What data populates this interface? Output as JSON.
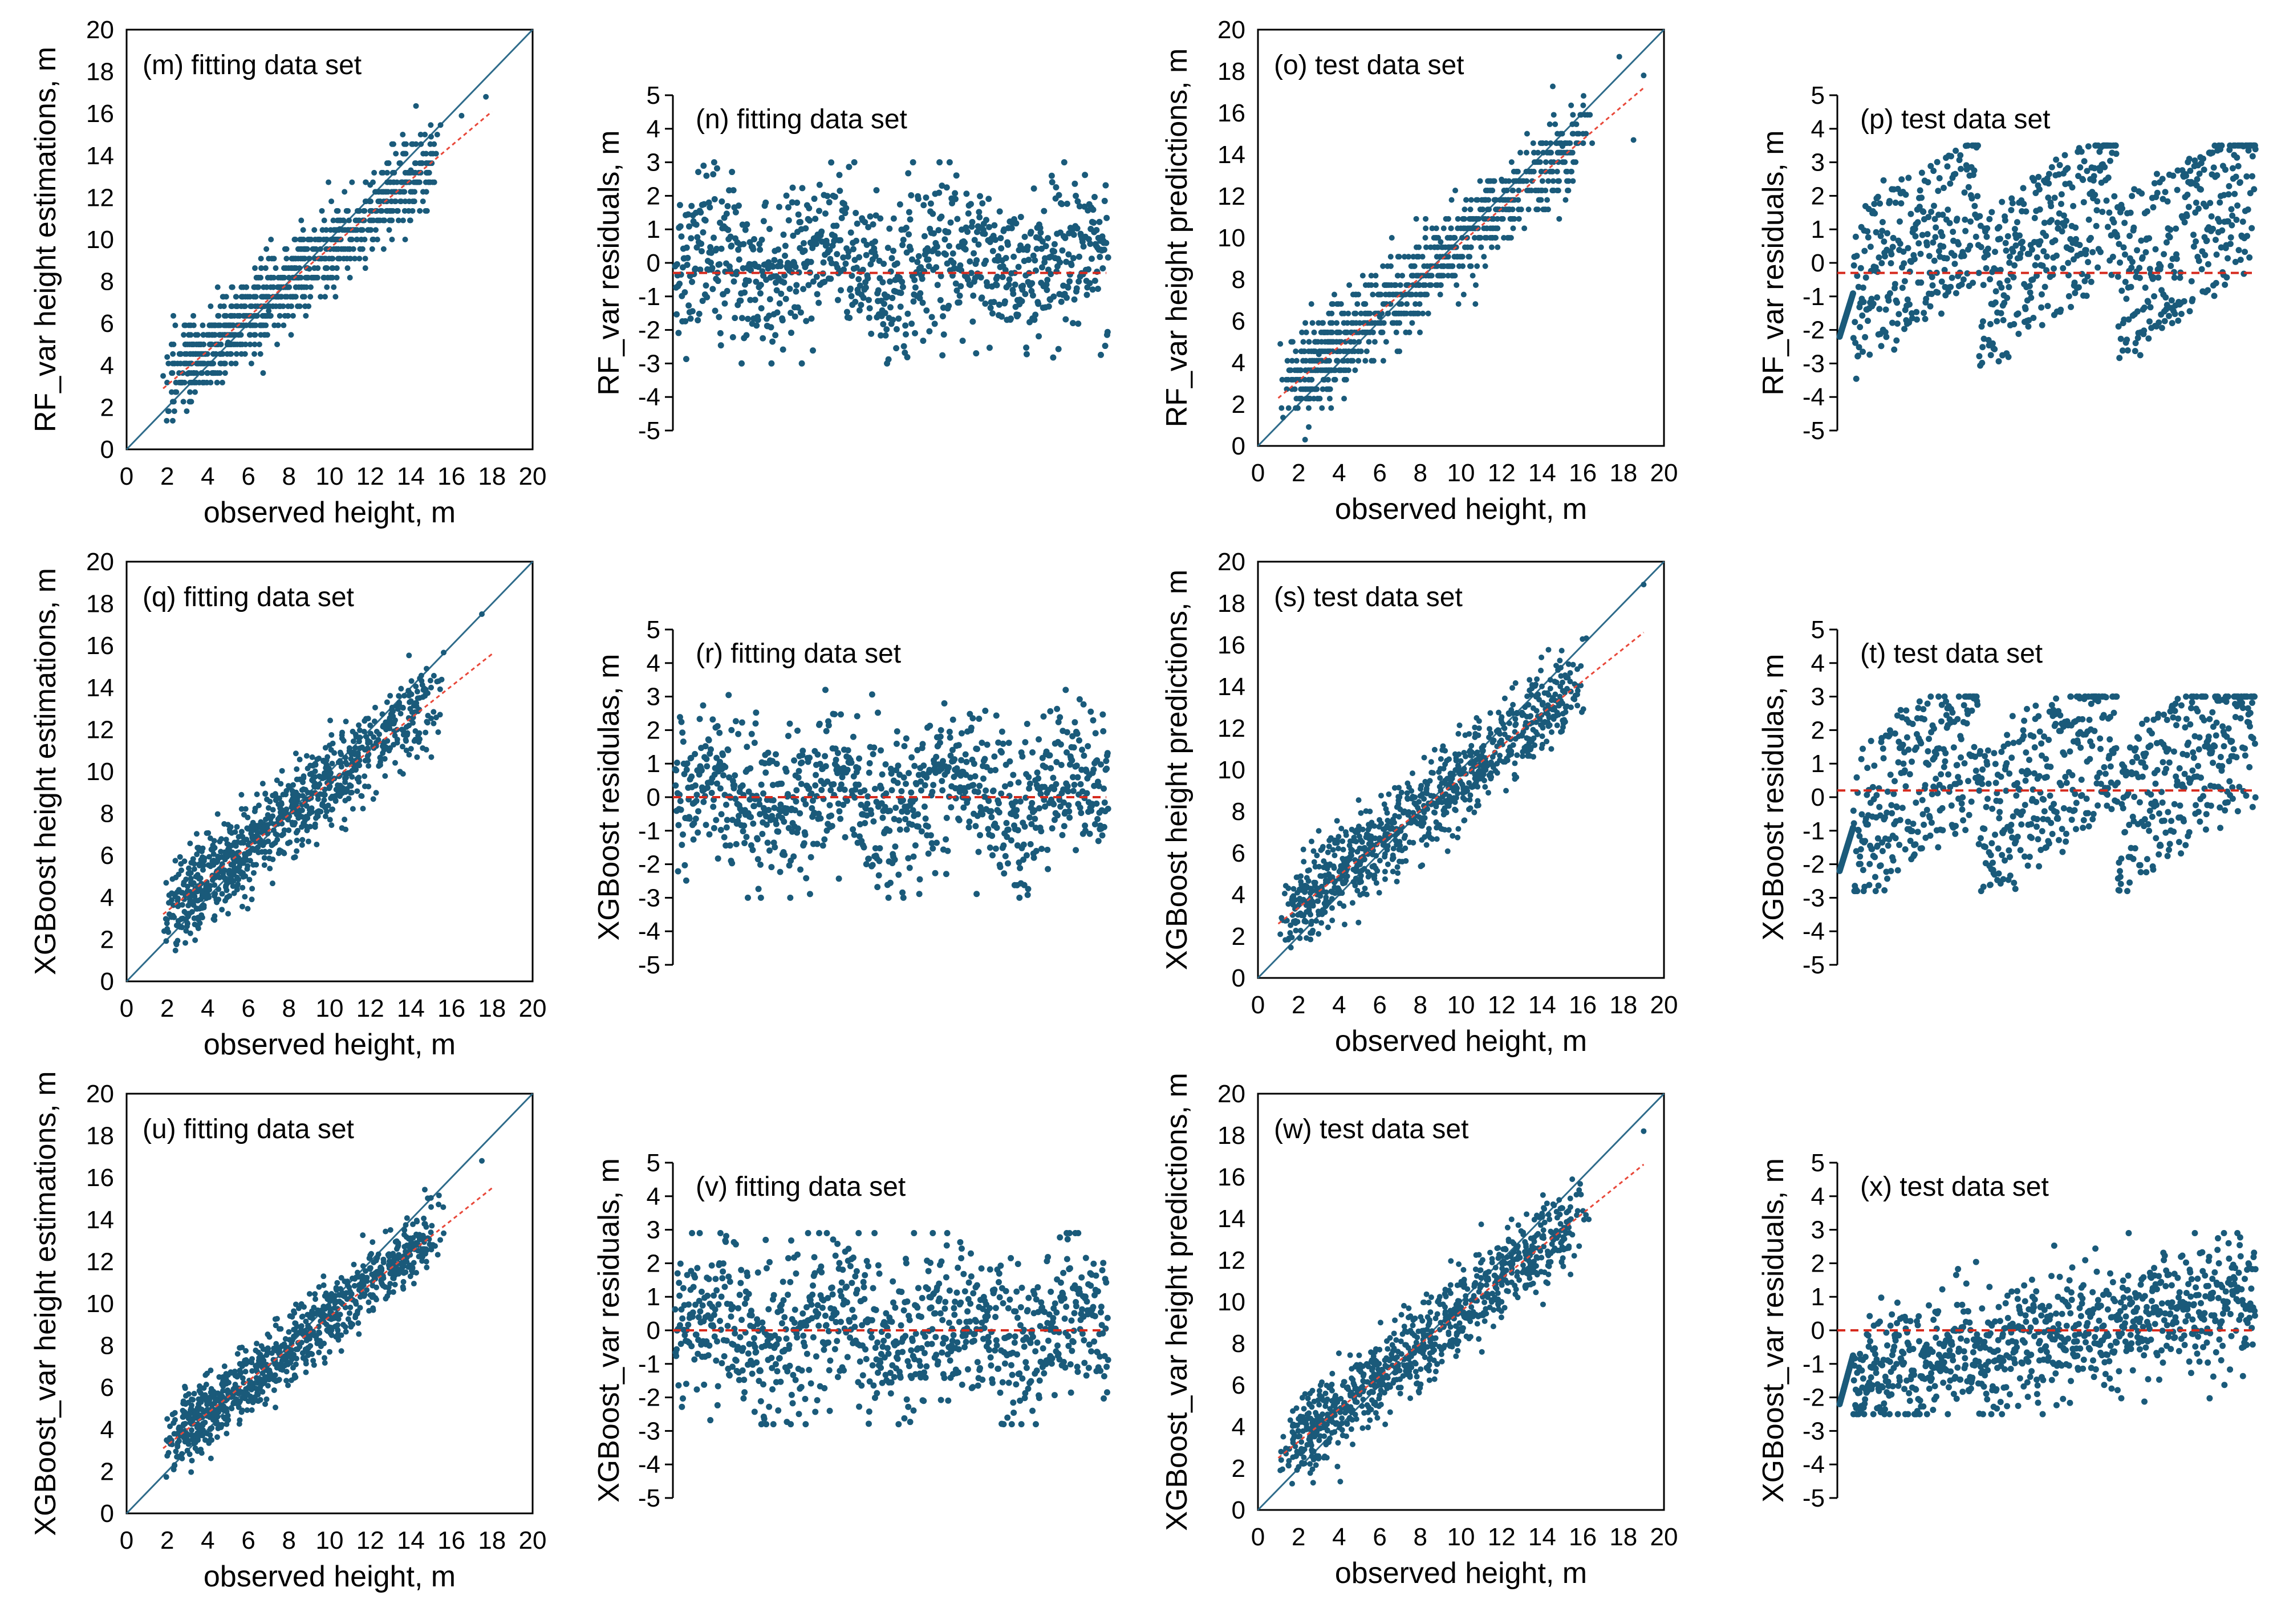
{
  "chart_data": [
    {
      "id": "m",
      "type": "scatter",
      "kind": "fit",
      "title": "(m) fitting data set",
      "xlabel": "observed height, m",
      "ylabel": "RF_var height estimations, m",
      "xlim": [
        0,
        20
      ],
      "ylim": [
        0,
        20
      ],
      "xticks": [
        "0",
        "2",
        "4",
        "6",
        "8",
        "10",
        "12",
        "14",
        "16",
        "18",
        "20"
      ],
      "yticks": [
        "0",
        "2",
        "4",
        "6",
        "8",
        "10",
        "12",
        "14",
        "16",
        "18",
        "20"
      ],
      "series": [
        {
          "name": "1:1 line",
          "points": [
            [
              0,
              0
            ],
            [
              20,
              20
            ]
          ]
        },
        {
          "name": "trend line",
          "points": [
            [
              1.8,
              2.9
            ],
            [
              18,
              16.1
            ]
          ]
        },
        {
          "name": "observations",
          "n": 900,
          "x_range": [
            1.8,
            17.8
          ],
          "y_spread": 1.3,
          "sample_points": [
            [
              1.8,
              3.5
            ],
            [
              2,
              4.4
            ],
            [
              3,
              3.6
            ],
            [
              5,
              5.1
            ],
            [
              7,
              6.6
            ],
            [
              9,
              8.6
            ],
            [
              10.5,
              10.5
            ],
            [
              12,
              12.6
            ],
            [
              14,
              13.3
            ],
            [
              15,
              14.9
            ],
            [
              16.5,
              15.9
            ],
            [
              17.7,
              16.8
            ]
          ]
        }
      ]
    },
    {
      "id": "n",
      "type": "scatter",
      "kind": "resid",
      "title": "(n) fitting data set",
      "xlabel": "",
      "ylabel": "RF_var residuals, m",
      "xlim": [
        0,
        1000
      ],
      "ylim": [
        -5,
        5
      ],
      "yticks": [
        "5",
        "4",
        "3",
        "2",
        "1",
        "0",
        "-1",
        "-2",
        "-3",
        "-4",
        "-5"
      ],
      "series": [
        {
          "name": "mean residual line",
          "y": -0.3
        },
        {
          "name": "residuals",
          "n": 900,
          "y_range": [
            -3.0,
            3.0
          ],
          "pattern": "random"
        }
      ]
    },
    {
      "id": "o",
      "type": "scatter",
      "kind": "fit",
      "title": "(o) test data set",
      "xlabel": "observed height, m",
      "ylabel": "RF_var height predictions, m",
      "xlim": [
        0,
        20
      ],
      "ylim": [
        0,
        20
      ],
      "xticks": [
        "0",
        "2",
        "4",
        "6",
        "8",
        "10",
        "12",
        "14",
        "16",
        "18",
        "20"
      ],
      "yticks": [
        "0",
        "2",
        "4",
        "6",
        "8",
        "10",
        "12",
        "14",
        "16",
        "18",
        "20"
      ],
      "series": [
        {
          "name": "1:1 line",
          "points": [
            [
              0,
              0
            ],
            [
              20,
              20
            ]
          ]
        },
        {
          "name": "trend line",
          "points": [
            [
              1,
              2.3
            ],
            [
              19,
              17.2
            ]
          ]
        },
        {
          "name": "observations",
          "n": 900,
          "x_range": [
            1.1,
            19
          ],
          "y_spread": 1.4,
          "sample_points": [
            [
              1.1,
              4.9
            ],
            [
              3,
              4.4
            ],
            [
              6,
              6.2
            ],
            [
              9,
              9.8
            ],
            [
              12,
              12.8
            ],
            [
              15,
              14.4
            ],
            [
              17.8,
              18.7
            ],
            [
              18.5,
              14.7
            ],
            [
              19,
              17.8
            ]
          ]
        }
      ]
    },
    {
      "id": "p",
      "type": "scatter",
      "kind": "resid",
      "title": "(p) test data set",
      "xlabel": "",
      "ylabel": "RF_var residuals, m",
      "xlim": [
        0,
        1000
      ],
      "ylim": [
        -5,
        5
      ],
      "yticks": [
        "5",
        "4",
        "3",
        "2",
        "1",
        "0",
        "-1",
        "-2",
        "-3",
        "-4",
        "-5"
      ],
      "series": [
        {
          "name": "mean residual line",
          "y": -0.3
        },
        {
          "name": "residuals",
          "n": 900,
          "y_range": [
            -3.7,
            3.5
          ],
          "pattern": "sawtooth"
        }
      ]
    },
    {
      "id": "q",
      "type": "scatter",
      "kind": "fit",
      "title": "(q) fitting data set",
      "xlabel": "observed height, m",
      "ylabel": "XGBoost height estimations, m",
      "xlim": [
        0,
        20
      ],
      "ylim": [
        0,
        20
      ],
      "xticks": [
        "0",
        "2",
        "4",
        "6",
        "8",
        "10",
        "12",
        "14",
        "16",
        "18",
        "20"
      ],
      "yticks": [
        "0",
        "2",
        "4",
        "6",
        "8",
        "10",
        "12",
        "14",
        "16",
        "18",
        "20"
      ],
      "series": [
        {
          "name": "1:1 line",
          "points": [
            [
              0,
              0
            ],
            [
              20,
              20
            ]
          ]
        },
        {
          "name": "trend line",
          "points": [
            [
              1.8,
              3.2
            ],
            [
              18,
              15.6
            ]
          ]
        },
        {
          "name": "observations",
          "n": 900,
          "x_range": [
            1.8,
            17.8
          ],
          "y_spread": 1.4,
          "sample_points": [
            [
              2,
              2.5
            ],
            [
              3,
              4.3
            ],
            [
              6,
              6.5
            ],
            [
              9,
              8.7
            ],
            [
              12,
              12.2
            ],
            [
              15,
              14
            ],
            [
              17.5,
              17.5
            ]
          ]
        }
      ]
    },
    {
      "id": "r",
      "type": "scatter",
      "kind": "resid",
      "title": "(r) fitting data set",
      "xlabel": "",
      "ylabel": "XGBoost residulas, m",
      "xlim": [
        0,
        1000
      ],
      "ylim": [
        -5,
        5
      ],
      "yticks": [
        "5",
        "4",
        "3",
        "2",
        "1",
        "0",
        "-1",
        "-2",
        "-3",
        "-4",
        "-5"
      ],
      "series": [
        {
          "name": "mean residual line",
          "y": 0
        },
        {
          "name": "residuals",
          "n": 900,
          "y_range": [
            -3.0,
            3.2
          ],
          "pattern": "random"
        }
      ]
    },
    {
      "id": "s",
      "type": "scatter",
      "kind": "fit",
      "title": "(s) test data set",
      "xlabel": "observed height, m",
      "ylabel": "XGBoost  height predictions, m",
      "xlim": [
        0,
        20
      ],
      "ylim": [
        0,
        20
      ],
      "xticks": [
        "0",
        "2",
        "4",
        "6",
        "8",
        "10",
        "12",
        "14",
        "16",
        "18",
        "20"
      ],
      "yticks": [
        "0",
        "2",
        "4",
        "6",
        "8",
        "10",
        "12",
        "14",
        "16",
        "18",
        "20"
      ],
      "series": [
        {
          "name": "1:1 line",
          "points": [
            [
              0,
              0
            ],
            [
              20,
              20
            ]
          ]
        },
        {
          "name": "trend line",
          "points": [
            [
              1,
              2.6
            ],
            [
              19,
              16.6
            ]
          ]
        },
        {
          "name": "observations",
          "n": 900,
          "x_range": [
            1.1,
            19
          ],
          "y_spread": 1.4,
          "sample_points": [
            [
              1.1,
              2.1
            ],
            [
              3,
              4.3
            ],
            [
              6,
              6.6
            ],
            [
              9,
              9
            ],
            [
              12,
              12.3
            ],
            [
              15,
              14.2
            ],
            [
              19,
              18.9
            ]
          ]
        }
      ]
    },
    {
      "id": "t",
      "type": "scatter",
      "kind": "resid",
      "title": "(t) test data set",
      "xlabel": "",
      "ylabel": "XGBoost residulas, m",
      "xlim": [
        0,
        1000
      ],
      "ylim": [
        -5,
        5
      ],
      "yticks": [
        "5",
        "4",
        "3",
        "2",
        "1",
        "0",
        "-1",
        "-2",
        "-3",
        "-4",
        "-5"
      ],
      "series": [
        {
          "name": "mean residual line",
          "y": 0.2
        },
        {
          "name": "residuals",
          "n": 900,
          "y_range": [
            -2.8,
            3.0
          ],
          "pattern": "sawtooth"
        }
      ]
    },
    {
      "id": "u",
      "type": "scatter",
      "kind": "fit",
      "title": "(u) fitting data set",
      "xlabel": "observed height, m",
      "ylabel": "XGBoost_var height estimations, m",
      "xlim": [
        0,
        20
      ],
      "ylim": [
        0,
        20
      ],
      "xticks": [
        "0",
        "2",
        "4",
        "6",
        "8",
        "10",
        "12",
        "14",
        "16",
        "18",
        "20"
      ],
      "yticks": [
        "0",
        "2",
        "4",
        "6",
        "8",
        "10",
        "12",
        "14",
        "16",
        "18",
        "20"
      ],
      "series": [
        {
          "name": "1:1 line",
          "points": [
            [
              0,
              0
            ],
            [
              20,
              20
            ]
          ]
        },
        {
          "name": "trend line",
          "points": [
            [
              1.8,
              3.1
            ],
            [
              18,
              15.5
            ]
          ]
        },
        {
          "name": "observations",
          "n": 900,
          "x_range": [
            1.8,
            17.8
          ],
          "y_spread": 1.1,
          "sample_points": [
            [
              2,
              4.5
            ],
            [
              3,
              3.5
            ],
            [
              6,
              6
            ],
            [
              9,
              8.5
            ],
            [
              12,
              12.3
            ],
            [
              15,
              14.6
            ],
            [
              17.5,
              16.8
            ]
          ]
        }
      ]
    },
    {
      "id": "v",
      "type": "scatter",
      "kind": "resid",
      "title": "(v) fitting data set",
      "xlabel": "",
      "ylabel": "XGBoost_var residuals, m",
      "xlim": [
        0,
        1000
      ],
      "ylim": [
        -5,
        5
      ],
      "yticks": [
        "5",
        "4",
        "3",
        "2",
        "1",
        "0",
        "-1",
        "-2",
        "-3",
        "-4",
        "-5"
      ],
      "series": [
        {
          "name": "mean residual line",
          "y": 0
        },
        {
          "name": "residuals",
          "n": 900,
          "y_range": [
            -2.8,
            2.9
          ],
          "pattern": "random"
        }
      ]
    },
    {
      "id": "w",
      "type": "scatter",
      "kind": "fit",
      "title": "(w) test data set",
      "xlabel": "observed height, m",
      "ylabel": "XGBoost_var height predictions, m",
      "xlim": [
        0,
        20
      ],
      "ylim": [
        0,
        20
      ],
      "xticks": [
        "0",
        "2",
        "4",
        "6",
        "8",
        "10",
        "12",
        "14",
        "16",
        "18",
        "20"
      ],
      "yticks": [
        "0",
        "2",
        "4",
        "6",
        "8",
        "10",
        "12",
        "14",
        "16",
        "18",
        "20"
      ],
      "series": [
        {
          "name": "1:1 line",
          "points": [
            [
              0,
              0
            ],
            [
              20,
              20
            ]
          ]
        },
        {
          "name": "trend line",
          "points": [
            [
              1,
              2.5
            ],
            [
              19,
              16.6
            ]
          ]
        },
        {
          "name": "observations",
          "n": 900,
          "x_range": [
            1.1,
            19
          ],
          "y_spread": 1.3,
          "sample_points": [
            [
              1.1,
              1.9
            ],
            [
              3,
              4.4
            ],
            [
              6,
              6.5
            ],
            [
              9,
              9
            ],
            [
              12,
              12.2
            ],
            [
              15,
              14.5
            ],
            [
              19,
              18.2
            ]
          ]
        }
      ]
    },
    {
      "id": "x",
      "type": "scatter",
      "kind": "resid",
      "title": "(x) test data set",
      "xlabel": "",
      "ylabel": "XGBoost_var residuals, m",
      "xlim": [
        0,
        1000
      ],
      "ylim": [
        -5,
        5
      ],
      "yticks": [
        "5",
        "4",
        "3",
        "2",
        "1",
        "0",
        "-1",
        "-2",
        "-3",
        "-4",
        "-5"
      ],
      "series": [
        {
          "name": "mean residual line",
          "y": 0
        },
        {
          "name": "residuals",
          "n": 900,
          "y_range": [
            -2.5,
            2.9
          ],
          "pattern": "rising"
        }
      ]
    }
  ],
  "colors": {
    "points": "#1a5a7a",
    "one_to_one": "#2e6b8a",
    "trend": "#e8483a",
    "mean_line": "#d62a1e",
    "axes": "#000000"
  }
}
